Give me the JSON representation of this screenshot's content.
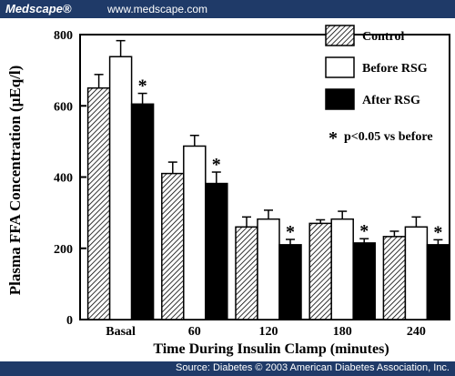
{
  "header": {
    "brand": "Medscape®",
    "url": "www.medscape.com"
  },
  "footer": {
    "source": "Source: Diabetes © 2003 American Diabetes Association, Inc."
  },
  "chart_data": {
    "type": "bar",
    "title": "",
    "xlabel": "Time During Insulin Clamp (minutes)",
    "ylabel": "Plasma FFA Concentration (μEq/l)",
    "ylim": [
      0,
      800
    ],
    "yticks": [
      0,
      200,
      400,
      600,
      800
    ],
    "categories": [
      "Basal",
      "60",
      "120",
      "180",
      "240"
    ],
    "series": [
      {
        "name": "Control",
        "values": [
          650,
          410,
          260,
          270,
          233
        ],
        "errors": [
          38,
          32,
          28,
          10,
          15
        ],
        "style": "hatched"
      },
      {
        "name": "Before RSG",
        "values": [
          738,
          487,
          282,
          282,
          260
        ],
        "errors": [
          45,
          30,
          25,
          22,
          28
        ],
        "style": "white"
      },
      {
        "name": "After RSG",
        "values": [
          605,
          382,
          210,
          215,
          210
        ],
        "errors": [
          30,
          32,
          15,
          12,
          14
        ],
        "style": "black"
      }
    ],
    "significant": [
      [
        false,
        false,
        true
      ],
      [
        false,
        false,
        true
      ],
      [
        false,
        false,
        true
      ],
      [
        false,
        false,
        true
      ],
      [
        false,
        false,
        true
      ]
    ],
    "significance_marker": "*",
    "annotation": "p<0.05 vs before",
    "legend_position": "top-right",
    "grid": false,
    "colors": {
      "frame": "#000000",
      "header_bg": "#1f3a68",
      "bar_white": "#ffffff",
      "bar_black": "#000000"
    }
  }
}
